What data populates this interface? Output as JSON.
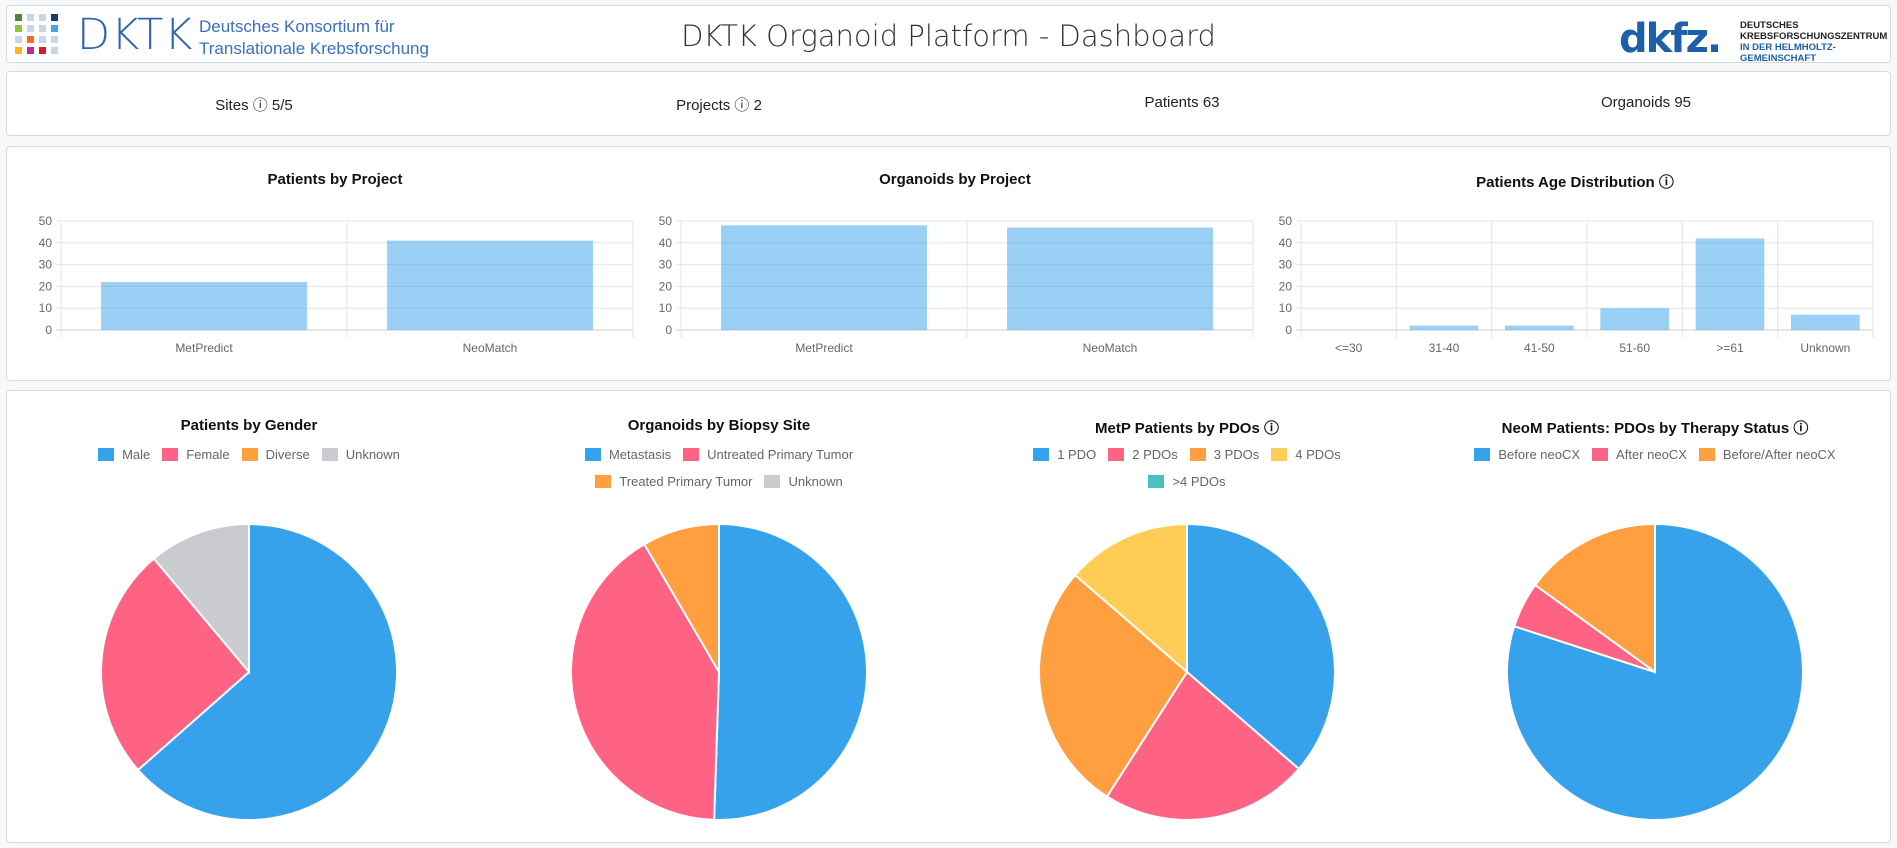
{
  "header": {
    "logo_text": "DKTK",
    "logo_subtitle_1": "Deutsches Konsortium für",
    "logo_subtitle_2": "Translationale Krebsforschung",
    "title": "DKTK Organoid Platform - Dashboard",
    "partner_logo": "dkfz.",
    "partner_line_1": "DEUTSCHES",
    "partner_line_2": "KREBSFORSCHUNGSZENTRUM",
    "partner_line_3": "IN DER HELMHOLTZ-GEMEINSCHAFT"
  },
  "stats": [
    {
      "label": "Sites ⓘ 5/5"
    },
    {
      "label": "Projects ⓘ 2"
    },
    {
      "label": "Patients 63"
    },
    {
      "label": "Organoids 95"
    }
  ],
  "colors": {
    "blue": "#36A2EB",
    "pink": "#FF6384",
    "orange": "#FF9F40",
    "yellow": "#FFCD56",
    "teal": "#4BC0C0",
    "grey": "#C9CBCF",
    "bar": "rgba(54,162,235,0.5)"
  },
  "chart_data": [
    {
      "type": "bar",
      "title": "Patients by Project",
      "categories": [
        "MetPredict",
        "NeoMatch"
      ],
      "values": [
        22,
        41
      ],
      "ylim": [
        0,
        50
      ],
      "yticks": [
        0,
        10,
        20,
        30,
        40,
        50
      ],
      "grid": true
    },
    {
      "type": "bar",
      "title": "Organoids by Project",
      "categories": [
        "MetPredict",
        "NeoMatch"
      ],
      "values": [
        48,
        47
      ],
      "ylim": [
        0,
        50
      ],
      "yticks": [
        0,
        10,
        20,
        30,
        40,
        50
      ],
      "grid": true
    },
    {
      "type": "bar",
      "title": "Patients Age Distribution ⓘ",
      "categories": [
        "<=30",
        "31-40",
        "41-50",
        "51-60",
        ">=61",
        "Unknown"
      ],
      "values": [
        0,
        2,
        2,
        10,
        42,
        7
      ],
      "ylim": [
        0,
        50
      ],
      "yticks": [
        0,
        10,
        20,
        30,
        40,
        50
      ],
      "grid": true
    },
    {
      "type": "pie",
      "title": "Patients by Gender",
      "labels": [
        "Male",
        "Female",
        "Diverse",
        "Unknown"
      ],
      "values": [
        40,
        16,
        0,
        7
      ],
      "colors": [
        "#36A2EB",
        "#FF6384",
        "#FF9F40",
        "#C9CBCF"
      ],
      "legend": "top"
    },
    {
      "type": "pie",
      "title": "Organoids by Biopsy Site",
      "labels": [
        "Metastasis",
        "Untreated Primary Tumor",
        "Treated Primary Tumor",
        "Unknown"
      ],
      "values": [
        48,
        39,
        8,
        0
      ],
      "colors": [
        "#36A2EB",
        "#FF6384",
        "#FF9F40",
        "#C9CBCF"
      ],
      "legend": "top"
    },
    {
      "type": "pie",
      "title": "MetP Patients by PDOs ⓘ",
      "labels": [
        "1 PDO",
        "2 PDOs",
        "3 PDOs",
        "4 PDOs",
        ">4 PDOs"
      ],
      "values": [
        8,
        5,
        6,
        3,
        0
      ],
      "colors": [
        "#36A2EB",
        "#FF6384",
        "#FF9F40",
        "#FFCD56",
        "#4BC0C0"
      ],
      "legend": "top"
    },
    {
      "type": "pie",
      "title": "NeoM Patients: PDOs by Therapy Status ⓘ",
      "labels": [
        "Before neoCX",
        "After neoCX",
        "Before/After neoCX"
      ],
      "values": [
        16,
        1,
        3
      ],
      "colors": [
        "#36A2EB",
        "#FF6384",
        "#FF9F40"
      ],
      "legend": "top"
    }
  ]
}
